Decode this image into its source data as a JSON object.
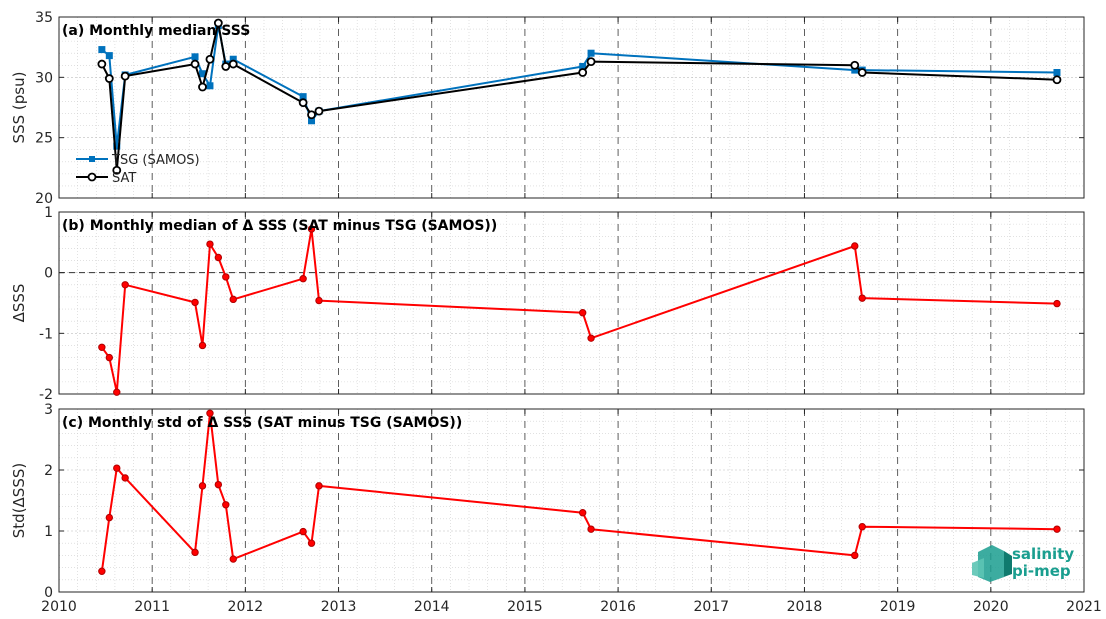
{
  "chart_data": [
    {
      "type": "line",
      "title": "(a) Monthly median SSS",
      "xlabel": "",
      "ylabel": "SSS (psu)",
      "xlim": [
        2010,
        2021
      ],
      "ylim": [
        20,
        35
      ],
      "yticks": [
        20,
        25,
        30,
        35
      ],
      "grid": true,
      "legend_position": "bottom-left",
      "series": [
        {
          "name": "TSG (SAMOS)",
          "color": "#0072bd",
          "marker": "square",
          "x": [
            2010.46,
            2010.54,
            2010.62,
            2010.71,
            2011.46,
            2011.54,
            2011.62,
            2011.71,
            2011.79,
            2011.87,
            2012.62,
            2012.71,
            2012.79,
            2015.62,
            2015.71,
            2018.54,
            2018.62,
            2020.71
          ],
          "y": [
            32.3,
            31.8,
            24.3,
            30.2,
            31.7,
            30.3,
            29.3,
            34.3,
            31.1,
            31.5,
            28.4,
            26.4,
            27.2,
            30.9,
            32.0,
            30.6,
            30.6,
            30.4
          ]
        },
        {
          "name": "SAT",
          "color": "#000000",
          "marker": "circle",
          "x": [
            2010.46,
            2010.54,
            2010.62,
            2010.71,
            2011.46,
            2011.54,
            2011.62,
            2011.71,
            2011.79,
            2011.87,
            2012.62,
            2012.71,
            2012.79,
            2015.62,
            2015.71,
            2018.54,
            2018.62,
            2020.71
          ],
          "y": [
            31.1,
            29.9,
            22.3,
            30.1,
            31.1,
            29.2,
            31.5,
            34.5,
            30.9,
            31.1,
            27.9,
            26.9,
            27.2,
            30.4,
            31.3,
            31.0,
            30.4,
            29.8
          ]
        }
      ]
    },
    {
      "type": "line",
      "title": "(b) Monthly median of Δ SSS (SAT minus TSG (SAMOS))",
      "xlabel": "",
      "ylabel": "ΔSSS",
      "xlim": [
        2010,
        2021
      ],
      "ylim": [
        -2,
        1
      ],
      "yticks": [
        -2,
        -1,
        0,
        1
      ],
      "reference_line": 0,
      "grid": true,
      "series": [
        {
          "color": "#ff0000",
          "marker": "circle",
          "x": [
            2010.46,
            2010.54,
            2010.62,
            2010.71,
            2011.46,
            2011.54,
            2011.62,
            2011.71,
            2011.79,
            2011.87,
            2012.62,
            2012.71,
            2012.79,
            2015.62,
            2015.71,
            2018.54,
            2018.62,
            2020.71
          ],
          "y": [
            -1.23,
            -1.4,
            -1.97,
            -0.2,
            -0.49,
            -1.2,
            0.47,
            0.25,
            -0.07,
            -0.44,
            -0.1,
            0.72,
            -0.46,
            -0.66,
            -1.08,
            0.44,
            -0.42,
            -0.51
          ]
        }
      ]
    },
    {
      "type": "line",
      "title": "(c) Monthly std of Δ SSS (SAT minus TSG (SAMOS))",
      "xlabel": "",
      "ylabel": "Std(ΔSSS)",
      "xlim": [
        2010,
        2021
      ],
      "ylim": [
        0,
        3
      ],
      "yticks": [
        0,
        1,
        2,
        3
      ],
      "xticks": [
        2010,
        2011,
        2012,
        2013,
        2014,
        2015,
        2016,
        2017,
        2018,
        2019,
        2020,
        2021
      ],
      "grid": true,
      "series": [
        {
          "color": "#ff0000",
          "marker": "circle",
          "x": [
            2010.46,
            2010.54,
            2010.62,
            2010.71,
            2011.46,
            2011.54,
            2011.62,
            2011.71,
            2011.79,
            2011.87,
            2012.62,
            2012.71,
            2012.79,
            2015.62,
            2015.71,
            2018.54,
            2018.62,
            2020.71
          ],
          "y": [
            0.34,
            1.22,
            2.03,
            1.87,
            0.65,
            1.74,
            2.93,
            1.76,
            1.43,
            0.54,
            0.99,
            0.8,
            1.74,
            1.3,
            1.03,
            0.6,
            1.07,
            1.03
          ]
        }
      ]
    }
  ],
  "logo": {
    "line1": "salinity",
    "line2": "pi-mep",
    "color": "#1a9e8f"
  }
}
